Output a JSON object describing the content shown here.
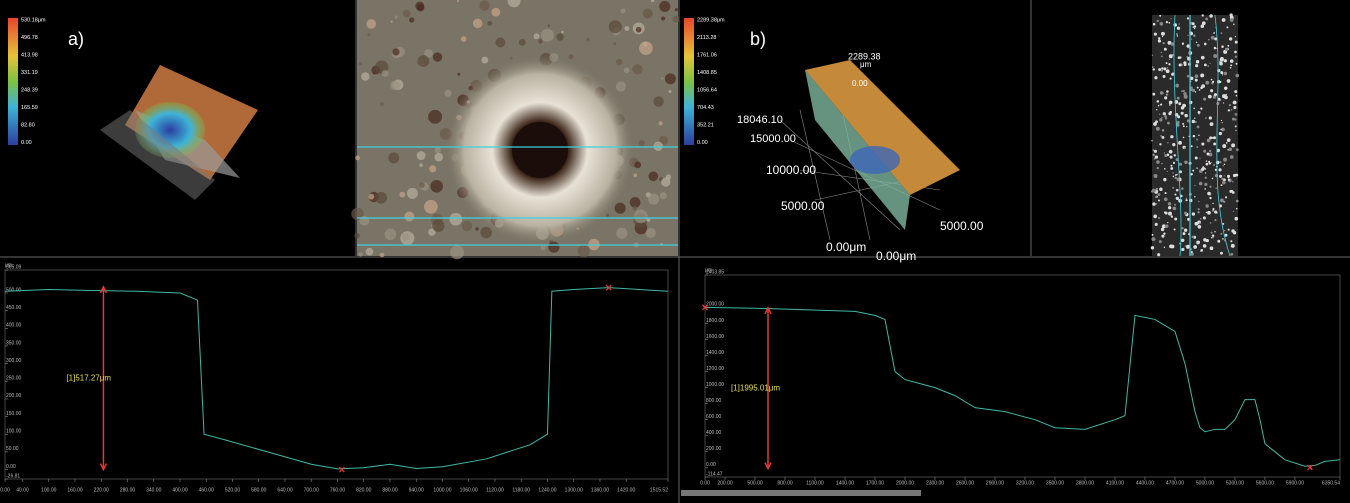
{
  "panels": {
    "a_label": "a)",
    "b_label": "b)",
    "a_colorbar": [
      "530.18μm",
      "496.78",
      "413.98",
      "331.19",
      "248.39",
      "165.59",
      "82.80",
      "0.00"
    ],
    "b_colorbar": [
      "2289.38μm",
      "2113.28",
      "1761.06",
      "1408.85",
      "1056.64",
      "704.43",
      "352.21",
      "0.00"
    ],
    "b_axes": [
      "2289.38",
      "μm",
      "0.00",
      "18046.10",
      "15000.00",
      "10000.00",
      "5000.00",
      "5000.00",
      "0.00μm",
      "0.00μm"
    ]
  },
  "chart_data": [
    {
      "type": "line",
      "y_label": "μm",
      "color": "#3fb8a6",
      "xlim": [
        0,
        1515.52
      ],
      "ylim": [
        -26.81,
        565.09
      ],
      "xticks": [
        {
          "value": 0,
          "label": "0.00"
        },
        {
          "value": 40,
          "label": "40.00"
        },
        {
          "value": 100,
          "label": "100.00"
        },
        {
          "value": 160,
          "label": "160.00"
        },
        {
          "value": 220,
          "label": "220.00"
        },
        {
          "value": 280,
          "label": "280.00"
        },
        {
          "value": 340,
          "label": "340.00"
        },
        {
          "value": 400,
          "label": "400.00"
        },
        {
          "value": 460,
          "label": "460.00"
        },
        {
          "value": 520,
          "label": "520.00"
        },
        {
          "value": 580,
          "label": "580.00"
        },
        {
          "value": 640,
          "label": "640.00"
        },
        {
          "value": 700,
          "label": "700.00"
        },
        {
          "value": 760,
          "label": "760.00"
        },
        {
          "value": 820,
          "label": "820.00"
        },
        {
          "value": 880,
          "label": "880.00"
        },
        {
          "value": 940,
          "label": "940.00"
        },
        {
          "value": 1000,
          "label": "1000.00"
        },
        {
          "value": 1060,
          "label": "1060.00"
        },
        {
          "value": 1120,
          "label": "1120.00"
        },
        {
          "value": 1180,
          "label": "1180.00"
        },
        {
          "value": 1240,
          "label": "1240.00"
        },
        {
          "value": 1300,
          "label": "1300.00"
        },
        {
          "value": 1360,
          "label": "1360.00"
        },
        {
          "value": 1420,
          "label": "1420.00"
        },
        1515.52
      ],
      "yticks": [
        -26.81,
        {
          "value": 0,
          "label": "0.00"
        },
        {
          "value": 50,
          "label": "50.00"
        },
        {
          "value": 100,
          "label": "100.00"
        },
        {
          "value": 150,
          "label": "150.00"
        },
        {
          "value": 200,
          "label": "200.00"
        },
        {
          "value": 250,
          "label": "250.00"
        },
        {
          "value": 300,
          "label": "300.00"
        },
        {
          "value": 350,
          "label": "350.00"
        },
        {
          "value": 400,
          "label": "400.00"
        },
        {
          "value": 450,
          "label": "450.00"
        },
        {
          "value": 500,
          "label": "500.00"
        },
        565.09
      ],
      "x": [
        0,
        100,
        200,
        300,
        400,
        440,
        455,
        500,
        600,
        700,
        760,
        820,
        880,
        940,
        1000,
        1100,
        1200,
        1240,
        1250,
        1300,
        1380,
        1450,
        1515
      ],
      "values": [
        505,
        510,
        507,
        505,
        500,
        480,
        100,
        85,
        50,
        15,
        2,
        5,
        15,
        3,
        8,
        30,
        70,
        100,
        505,
        510,
        515,
        510,
        505
      ],
      "markers": {
        "x": [
          1380,
          770
        ],
        "values": [
          515,
          0
        ]
      },
      "annotation": {
        "text": "[1]517.27μm",
        "x": 225,
        "from": 0,
        "to": 517.27
      }
    },
    {
      "type": "line",
      "y_label": "μm",
      "color": "#3fb8a6",
      "xlim": [
        0,
        6350.54
      ],
      "ylim": [
        -114.47,
        2403.85
      ],
      "xticks": [
        {
          "value": 0,
          "label": "0.00"
        },
        {
          "value": 200,
          "label": "200.00"
        },
        {
          "value": 500,
          "label": "500.00"
        },
        {
          "value": 800,
          "label": "800.00"
        },
        {
          "value": 1100,
          "label": "1100.00"
        },
        {
          "value": 1400,
          "label": "1400.00"
        },
        {
          "value": 1700,
          "label": "1700.00"
        },
        {
          "value": 2000,
          "label": "2000.00"
        },
        {
          "value": 2300,
          "label": "2300.00"
        },
        {
          "value": 2600,
          "label": "2600.00"
        },
        {
          "value": 2900,
          "label": "2900.00"
        },
        {
          "value": 3200,
          "label": "3200.00"
        },
        {
          "value": 3500,
          "label": "3500.00"
        },
        {
          "value": 3800,
          "label": "3800.00"
        },
        {
          "value": 4100,
          "label": "4100.00"
        },
        {
          "value": 4400,
          "label": "4400.00"
        },
        {
          "value": 4700,
          "label": "4700.00"
        },
        {
          "value": 5000,
          "label": "5000.00"
        },
        {
          "value": 5300,
          "label": "5300.00"
        },
        {
          "value": 5600,
          "label": "5600.00"
        },
        {
          "value": 5900,
          "label": "5900.00"
        },
        6350.54
      ],
      "yticks": [
        -114.47,
        {
          "value": 0,
          "label": "0.00"
        },
        {
          "value": 200,
          "label": "200.00"
        },
        {
          "value": 400,
          "label": "400.00"
        },
        {
          "value": 600,
          "label": "600.00"
        },
        {
          "value": 800,
          "label": "800.00"
        },
        {
          "value": 1000,
          "label": "1000.00"
        },
        {
          "value": 1200,
          "label": "1200.00"
        },
        {
          "value": 1400,
          "label": "1400.00"
        },
        {
          "value": 1600,
          "label": "1600.00"
        },
        {
          "value": 1800,
          "label": "1800.00"
        },
        {
          "value": 2000,
          "label": "2000.00"
        },
        2403.85
      ],
      "x": [
        0,
        500,
        1000,
        1500,
        1700,
        1800,
        1900,
        2000,
        2300,
        2500,
        2700,
        3000,
        3300,
        3500,
        3800,
        4100,
        4200,
        4300,
        4500,
        4700,
        4750,
        4800,
        4850,
        4900,
        4950,
        5000,
        5100,
        5200,
        5300,
        5400,
        5500,
        5550,
        5600,
        5800,
        6000,
        6100,
        6200,
        6350
      ],
      "values": [
        2000,
        1990,
        1970,
        1950,
        1900,
        1850,
        1200,
        1100,
        1000,
        900,
        750,
        700,
        600,
        500,
        480,
        600,
        650,
        1900,
        1850,
        1700,
        1500,
        1300,
        1000,
        700,
        500,
        450,
        480,
        480,
        600,
        850,
        850,
        600,
        300,
        100,
        20,
        30,
        80,
        100
      ],
      "markers": {
        "x": [
          0,
          6050
        ],
        "values": [
          2000,
          5
        ]
      },
      "annotation": {
        "text": "[1]1995.01μm",
        "x": 630,
        "from": -10,
        "to": 1995.01
      }
    }
  ]
}
